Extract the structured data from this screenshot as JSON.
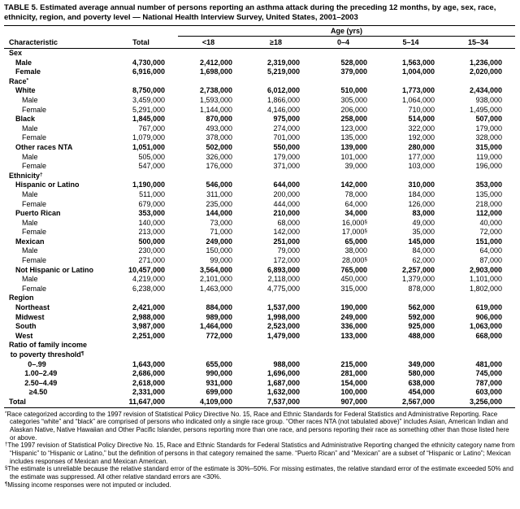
{
  "title": "TABLE 5. Estimated average annual number of persons reporting an asthma attack during the preceding 12 months, by age, sex, race, ethnicity, region, and poverty level — National Health Interview Survey, United States, 2001–2003",
  "table": {
    "age_spanner": "Age (yrs)",
    "columns": [
      "Characteristic",
      "Total",
      "<18",
      "≥18",
      "0–4",
      "5–14",
      "15–34"
    ],
    "rows": [
      {
        "label": "Sex",
        "indent": 0,
        "bold": true,
        "values": [
          "",
          "",
          "",
          "",
          "",
          ""
        ]
      },
      {
        "label": "Male",
        "indent": 1,
        "bold": true,
        "values": [
          "4,730,000",
          "2,412,000",
          "2,319,000",
          "528,000",
          "1,563,000",
          "1,236,000"
        ]
      },
      {
        "label": "Female",
        "indent": 1,
        "bold": true,
        "values": [
          "6,916,000",
          "1,698,000",
          "5,219,000",
          "379,000",
          "1,004,000",
          "2,020,000"
        ]
      },
      {
        "label": "Race*",
        "indent": 0,
        "bold": true,
        "values": [
          "",
          "",
          "",
          "",
          "",
          ""
        ]
      },
      {
        "label": "White",
        "indent": 1,
        "bold": true,
        "values": [
          "8,750,000",
          "2,738,000",
          "6,012,000",
          "510,000",
          "1,773,000",
          "2,434,000"
        ]
      },
      {
        "label": "Male",
        "indent": 2,
        "bold": false,
        "values": [
          "3,459,000",
          "1,593,000",
          "1,866,000",
          "305,000",
          "1,064,000",
          "938,000"
        ]
      },
      {
        "label": "Female",
        "indent": 2,
        "bold": false,
        "values": [
          "5,291,000",
          "1,144,000",
          "4,146,000",
          "206,000",
          "710,000",
          "1,495,000"
        ]
      },
      {
        "label": "Black",
        "indent": 1,
        "bold": true,
        "values": [
          "1,845,000",
          "870,000",
          "975,000",
          "258,000",
          "514,000",
          "507,000"
        ]
      },
      {
        "label": "Male",
        "indent": 2,
        "bold": false,
        "values": [
          "767,000",
          "493,000",
          "274,000",
          "123,000",
          "322,000",
          "179,000"
        ]
      },
      {
        "label": "Female",
        "indent": 2,
        "bold": false,
        "values": [
          "1,079,000",
          "378,000",
          "701,000",
          "135,000",
          "192,000",
          "328,000"
        ]
      },
      {
        "label": "Other races NTA",
        "indent": 1,
        "bold": true,
        "values": [
          "1,051,000",
          "502,000",
          "550,000",
          "139,000",
          "280,000",
          "315,000"
        ]
      },
      {
        "label": "Male",
        "indent": 2,
        "bold": false,
        "values": [
          "505,000",
          "326,000",
          "179,000",
          "101,000",
          "177,000",
          "119,000"
        ]
      },
      {
        "label": "Female",
        "indent": 2,
        "bold": false,
        "values": [
          "547,000",
          "176,000",
          "371,000",
          "39,000",
          "103,000",
          "196,000"
        ]
      },
      {
        "label": "Ethnicity†",
        "indent": 0,
        "bold": true,
        "values": [
          "",
          "",
          "",
          "",
          "",
          ""
        ]
      },
      {
        "label": "Hispanic or Latino",
        "indent": 1,
        "bold": true,
        "values": [
          "1,190,000",
          "546,000",
          "644,000",
          "142,000",
          "310,000",
          "353,000"
        ]
      },
      {
        "label": "Male",
        "indent": 2,
        "bold": false,
        "values": [
          "511,000",
          "311,000",
          "200,000",
          "78,000",
          "184,000",
          "135,000"
        ]
      },
      {
        "label": "Female",
        "indent": 2,
        "bold": false,
        "values": [
          "679,000",
          "235,000",
          "444,000",
          "64,000",
          "126,000",
          "218,000"
        ]
      },
      {
        "label": "Puerto Rican",
        "indent": 1,
        "bold": true,
        "values": [
          "353,000",
          "144,000",
          "210,000",
          "34,000",
          "83,000",
          "112,000"
        ]
      },
      {
        "label": "Male",
        "indent": 2,
        "bold": false,
        "values": [
          "140,000",
          "73,000",
          "68,000",
          "16,000§",
          "49,000",
          "40,000"
        ]
      },
      {
        "label": "Female",
        "indent": 2,
        "bold": false,
        "values": [
          "213,000",
          "71,000",
          "142,000",
          "17,000§",
          "35,000",
          "72,000"
        ]
      },
      {
        "label": "Mexican",
        "indent": 1,
        "bold": true,
        "values": [
          "500,000",
          "249,000",
          "251,000",
          "65,000",
          "145,000",
          "151,000"
        ]
      },
      {
        "label": "Male",
        "indent": 2,
        "bold": false,
        "values": [
          "230,000",
          "150,000",
          "79,000",
          "38,000",
          "84,000",
          "64,000"
        ]
      },
      {
        "label": "Female",
        "indent": 2,
        "bold": false,
        "values": [
          "271,000",
          "99,000",
          "172,000",
          "28,000§",
          "62,000",
          "87,000"
        ]
      },
      {
        "label": "Not Hispanic or Latino",
        "indent": 1,
        "bold": true,
        "values": [
          "10,457,000",
          "3,564,000",
          "6,893,000",
          "765,000",
          "2,257,000",
          "2,903,000"
        ]
      },
      {
        "label": "Male",
        "indent": 2,
        "bold": false,
        "values": [
          "4,219,000",
          "2,101,000",
          "2,118,000",
          "450,000",
          "1,379,000",
          "1,101,000"
        ]
      },
      {
        "label": "Female",
        "indent": 2,
        "bold": false,
        "values": [
          "6,238,000",
          "1,463,000",
          "4,775,000",
          "315,000",
          "878,000",
          "1,802,000"
        ]
      },
      {
        "label": "Region",
        "indent": 0,
        "bold": true,
        "values": [
          "",
          "",
          "",
          "",
          "",
          ""
        ]
      },
      {
        "label": "Northeast",
        "indent": 1,
        "bold": true,
        "values": [
          "2,421,000",
          "884,000",
          "1,537,000",
          "190,000",
          "562,000",
          "619,000"
        ]
      },
      {
        "label": "Midwest",
        "indent": 1,
        "bold": true,
        "values": [
          "2,988,000",
          "989,000",
          "1,998,000",
          "249,000",
          "592,000",
          "906,000"
        ]
      },
      {
        "label": "South",
        "indent": 1,
        "bold": true,
        "values": [
          "3,987,000",
          "1,464,000",
          "2,523,000",
          "336,000",
          "925,000",
          "1,063,000"
        ]
      },
      {
        "label": "West",
        "indent": 1,
        "bold": true,
        "values": [
          "2,251,000",
          "772,000",
          "1,479,000",
          "133,000",
          "488,000",
          "668,000"
        ]
      },
      {
        "label": "Ratio of family income\nto poverty threshold¶",
        "indent": 0,
        "bold": true,
        "values": [
          "",
          "",
          "",
          "",
          "",
          ""
        ]
      },
      {
        "label": "0–.99",
        "indent": 2.9,
        "bold": true,
        "values": [
          "1,643,000",
          "655,000",
          "988,000",
          "215,000",
          "349,000",
          "481,000"
        ]
      },
      {
        "label": "1.00–2.49",
        "indent": 2.4,
        "bold": true,
        "values": [
          "2,686,000",
          "990,000",
          "1,696,000",
          "281,000",
          "580,000",
          "745,000"
        ]
      },
      {
        "label": "2.50–4.49",
        "indent": 2.4,
        "bold": true,
        "values": [
          "2,618,000",
          "931,000",
          "1,687,000",
          "154,000",
          "638,000",
          "787,000"
        ]
      },
      {
        "label": "≥4.50",
        "indent": 3.1,
        "bold": true,
        "values": [
          "2,331,000",
          "699,000",
          "1,632,000",
          "100,000",
          "454,000",
          "603,000"
        ]
      },
      {
        "label": "Total",
        "indent": 0,
        "bold": true,
        "values": [
          "11,647,000",
          "4,109,000",
          "7,537,000",
          "907,000",
          "2,567,000",
          "3,256,000"
        ]
      }
    ]
  },
  "footnotes": [
    {
      "marker": "*",
      "text": "Race categorized according to the 1997 revision of Statistical Policy Directive No. 15, Race and Ethnic Standards for Federal Statistics and Administrative Reporting. Race categories “white” and “black” are comprised of persons who indicated only a single race group. “Other races NTA (not tabulated above)” includes Asian, American Indian and Alaskan Native, Native Hawaiian and Other Pacific Islander, persons reporting more than one race, and persons reporting their race as something other than those listed here or above."
    },
    {
      "marker": "†",
      "text": "The 1997 revision of Statistical Policy Directive No. 15, Race and Ethnic Standards for Federal Statistics and Administrative Reporting changed the ethnicity category name from “Hispanic” to “Hispanic or Latino,” but the definition of persons in that category remained the same. “Puerto Rican” and “Mexican” are a subset of “Hispanic or Latino”; Mexican includes responses of Mexican and Mexican American."
    },
    {
      "marker": "§",
      "text": "The estimate is unreliable because the relative standard error of the estimate is 30%–50%. For missing estimates, the relative standard error of the estimate exceeded 50% and the estimate was suppressed. All other relative standard errors are <30%."
    },
    {
      "marker": "¶",
      "text": "Missing income responses were not imputed or included."
    }
  ]
}
